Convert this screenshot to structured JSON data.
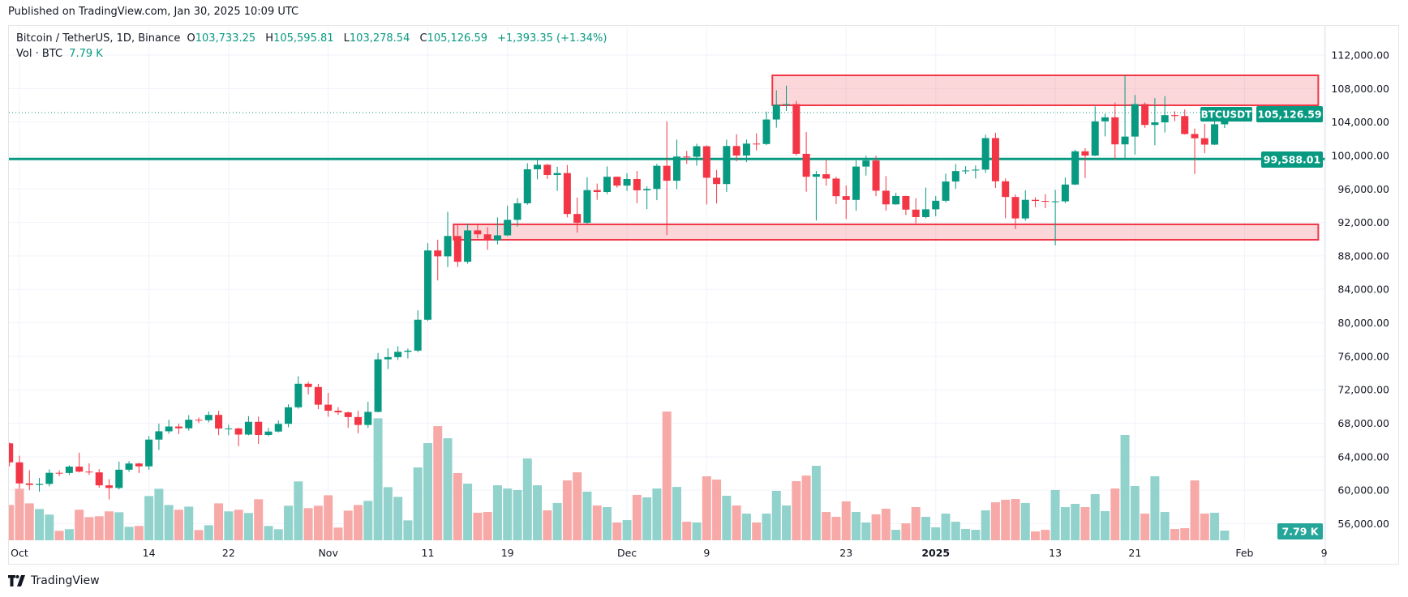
{
  "header": {
    "published": "Published on TradingView.com, Jan 30, 2025 10:09 UTC"
  },
  "legend": {
    "symbol": "Bitcoin / TetherUS, 1D, Binance",
    "o_label": "O",
    "o": "103,733.25",
    "h_label": "H",
    "h": "105,595.81",
    "l_label": "L",
    "l": "103,278.54",
    "c_label": "C",
    "c": "105,126.59",
    "change": "+1,393.35 (+1.34%)",
    "vol_label": "Vol · BTC",
    "vol": "7.79 K"
  },
  "price_tags": {
    "symbol_tag": "BTCUSDT",
    "last_price": "105,126.59",
    "hline_price": "99,588.01",
    "volume_tag": "7.79 K"
  },
  "footer": {
    "brand": "TradingView"
  },
  "colors": {
    "up": "#089981",
    "down": "#f23645",
    "up_vol": "#92d2cc",
    "down_vol": "#f7a9a7",
    "zone": "#f23645"
  },
  "chart_data": {
    "type": "candlestick",
    "title": "Bitcoin / TetherUS, 1D, Binance",
    "first_date": "2024-09-30",
    "interval": "1D",
    "ylim": [
      54000,
      114000
    ],
    "y_ticks": [
      "112,000.00",
      "108,000.00",
      "104,000.00",
      "100,000.00",
      "96,000.00",
      "92,000.00",
      "88,000.00",
      "84,000.00",
      "80,000.00",
      "76,000.00",
      "72,000.00",
      "68,000.00",
      "64,000.00",
      "60,000.00",
      "56,000.00"
    ],
    "y_tick_values": [
      112000,
      108000,
      104000,
      100000,
      96000,
      92000,
      88000,
      84000,
      80000,
      76000,
      72000,
      68000,
      64000,
      60000,
      56000
    ],
    "x_ticks": [
      {
        "label": "Oct",
        "day": 1,
        "bold": false
      },
      {
        "label": "14",
        "day": 14,
        "bold": false
      },
      {
        "label": "22",
        "day": 22,
        "bold": false
      },
      {
        "label": "Nov",
        "day": 32,
        "bold": false
      },
      {
        "label": "11",
        "day": 42,
        "bold": false
      },
      {
        "label": "19",
        "day": 50,
        "bold": false
      },
      {
        "label": "Dec",
        "day": 62,
        "bold": false
      },
      {
        "label": "9",
        "day": 70,
        "bold": false
      },
      {
        "label": "23",
        "day": 84,
        "bold": false
      },
      {
        "label": "2025",
        "day": 93,
        "bold": true
      },
      {
        "label": "13",
        "day": 105,
        "bold": false
      },
      {
        "label": "21",
        "day": 113,
        "bold": false
      },
      {
        "label": "Feb",
        "day": 124,
        "bold": false
      },
      {
        "label": "9",
        "day": 132,
        "bold": false
      }
    ],
    "ohlcv_columns": [
      "open",
      "high",
      "low",
      "close",
      "volume_k"
    ],
    "ohlcv": [
      [
        65600,
        65700,
        62850,
        63330,
        28.3
      ],
      [
        63330,
        64130,
        60160,
        60810,
        41.3
      ],
      [
        60810,
        62400,
        60000,
        60630,
        29.6
      ],
      [
        60630,
        61470,
        59830,
        60750,
        25.1
      ],
      [
        60750,
        62480,
        60460,
        62080,
        20.6
      ],
      [
        62080,
        62370,
        61680,
        62060,
        7.6
      ],
      [
        62060,
        62970,
        61820,
        62820,
        8.9
      ],
      [
        62820,
        64480,
        62130,
        62220,
        24.5
      ],
      [
        62220,
        63200,
        61830,
        62130,
        18.6
      ],
      [
        62130,
        62520,
        60300,
        60580,
        19.3
      ],
      [
        60580,
        61320,
        58900,
        60270,
        23.2
      ],
      [
        60270,
        63420,
        60090,
        62450,
        22.5
      ],
      [
        62450,
        63480,
        62190,
        63190,
        10.8
      ],
      [
        63190,
        63280,
        62050,
        62850,
        11.5
      ],
      [
        62850,
        66500,
        62440,
        66050,
        35.5
      ],
      [
        66050,
        67950,
        64800,
        67040,
        41.3
      ],
      [
        67040,
        68420,
        66750,
        67610,
        28.3
      ],
      [
        67610,
        67940,
        66700,
        67400,
        24.5
      ],
      [
        67400,
        68970,
        67130,
        68420,
        27.0
      ],
      [
        68420,
        68690,
        68020,
        68360,
        8.2
      ],
      [
        68360,
        69400,
        68100,
        69000,
        12.1
      ],
      [
        69000,
        69500,
        66570,
        67370,
        29.6
      ],
      [
        67370,
        67830,
        66570,
        67380,
        23.2
      ],
      [
        67380,
        67470,
        65260,
        66650,
        24.5
      ],
      [
        66650,
        68850,
        66550,
        68170,
        21.9
      ],
      [
        68170,
        68800,
        65520,
        66600,
        32.9
      ],
      [
        66600,
        67450,
        66460,
        67010,
        11.5
      ],
      [
        67010,
        68330,
        66910,
        67930,
        8.9
      ],
      [
        67930,
        70270,
        67520,
        69910,
        27.7
      ],
      [
        69910,
        73620,
        69730,
        72720,
        47.2
      ],
      [
        72720,
        72960,
        71440,
        72330,
        25.8
      ],
      [
        72330,
        72700,
        69680,
        70220,
        27.7
      ],
      [
        70220,
        71630,
        68780,
        69500,
        36.1
      ],
      [
        69500,
        69920,
        69000,
        69300,
        10.2
      ],
      [
        69300,
        69400,
        67460,
        68740,
        23.8
      ],
      [
        68740,
        69490,
        66800,
        67800,
        28.3
      ],
      [
        67800,
        70580,
        67450,
        69360,
        31.6
      ],
      [
        69360,
        76400,
        69300,
        75640,
        97.8
      ],
      [
        75640,
        76950,
        74460,
        75900,
        42.6
      ],
      [
        75900,
        77200,
        75560,
        76540,
        34.8
      ],
      [
        76540,
        76930,
        75740,
        76680,
        16.0
      ],
      [
        76680,
        81500,
        76490,
        80370,
        58.4
      ],
      [
        80370,
        89530,
        80220,
        88650,
        77.9
      ],
      [
        88650,
        89940,
        85070,
        87950,
        91.5
      ],
      [
        87950,
        93270,
        86660,
        90380,
        81.8
      ],
      [
        90380,
        91760,
        86670,
        87300,
        53.9
      ],
      [
        87300,
        91850,
        87070,
        91050,
        45.4
      ],
      [
        91050,
        91800,
        90090,
        90580,
        22.1
      ],
      [
        90580,
        91440,
        88720,
        89850,
        22.7
      ],
      [
        89850,
        92600,
        89380,
        90460,
        44.1
      ],
      [
        90460,
        94000,
        90370,
        92310,
        41.5
      ],
      [
        92310,
        94900,
        91500,
        94290,
        40.3
      ],
      [
        94290,
        99070,
        94120,
        98350,
        65.6
      ],
      [
        98350,
        99590,
        97150,
        98890,
        44.1
      ],
      [
        98890,
        99000,
        97200,
        97670,
        24.0
      ],
      [
        97670,
        98650,
        95770,
        97900,
        29.9
      ],
      [
        97900,
        98870,
        92600,
        93010,
        48.0
      ],
      [
        93010,
        94970,
        90790,
        91960,
        54.5
      ],
      [
        91960,
        97400,
        91820,
        95860,
        39.0
      ],
      [
        95860,
        96650,
        94700,
        95640,
        27.9
      ],
      [
        95640,
        98700,
        95380,
        97460,
        26.6
      ],
      [
        97460,
        97470,
        96160,
        96400,
        14.3
      ],
      [
        96400,
        97890,
        95770,
        97190,
        16.2
      ],
      [
        97190,
        98150,
        94300,
        95840,
        36.4
      ],
      [
        95840,
        96300,
        93580,
        96000,
        34.4
      ],
      [
        96000,
        99000,
        94660,
        98770,
        41.5
      ],
      [
        98770,
        104090,
        90500,
        96980,
        103.2
      ],
      [
        96980,
        101900,
        95980,
        99870,
        42.8
      ],
      [
        99870,
        100550,
        99000,
        99850,
        14.9
      ],
      [
        99850,
        101400,
        98780,
        101110,
        14.3
      ],
      [
        101110,
        101210,
        94150,
        97340,
        51.3
      ],
      [
        97340,
        98270,
        94260,
        96590,
        48.7
      ],
      [
        96590,
        101890,
        95640,
        101130,
        35.7
      ],
      [
        101130,
        102540,
        99310,
        100000,
        27.9
      ],
      [
        100000,
        101900,
        99210,
        101420,
        21.4
      ],
      [
        101420,
        102650,
        100610,
        101370,
        14.3
      ],
      [
        101370,
        105250,
        101230,
        104300,
        21.4
      ],
      [
        104300,
        107790,
        103330,
        106060,
        39.6
      ],
      [
        106060,
        108350,
        105320,
        106140,
        27.9
      ],
      [
        106140,
        106520,
        100000,
        100200,
        47.4
      ],
      [
        100200,
        102800,
        95670,
        97460,
        51.9
      ],
      [
        97460,
        98160,
        92230,
        97760,
        59.7
      ],
      [
        97760,
        99540,
        96400,
        97240,
        22.7
      ],
      [
        97240,
        97450,
        94200,
        95140,
        18.8
      ],
      [
        95140,
        96420,
        92400,
        94690,
        31.2
      ],
      [
        94690,
        99400,
        93400,
        98680,
        22.7
      ],
      [
        98680,
        99960,
        97600,
        99400,
        14.3
      ],
      [
        99400,
        99960,
        95140,
        95790,
        20.8
      ],
      [
        95790,
        97540,
        93400,
        94160,
        25.3
      ],
      [
        94160,
        95530,
        94120,
        95160,
        8.4
      ],
      [
        95160,
        95200,
        92880,
        93530,
        13.6
      ],
      [
        93530,
        94900,
        91900,
        92640,
        26.6
      ],
      [
        92640,
        96160,
        92500,
        93570,
        18.8
      ],
      [
        93570,
        95150,
        92740,
        94590,
        10.4
      ],
      [
        94590,
        97840,
        94400,
        96890,
        21.4
      ],
      [
        96890,
        98980,
        96040,
        98140,
        14.9
      ],
      [
        98140,
        98730,
        97780,
        98210,
        9.1
      ],
      [
        98210,
        98810,
        97250,
        98310,
        8.4
      ],
      [
        98310,
        102480,
        97920,
        102080,
        24.0
      ],
      [
        102080,
        102720,
        96130,
        96920,
        30.5
      ],
      [
        96920,
        97260,
        92500,
        95040,
        32.5
      ],
      [
        95040,
        95350,
        91200,
        92480,
        33.1
      ],
      [
        92480,
        95840,
        92200,
        94700,
        29.9
      ],
      [
        94700,
        95000,
        93830,
        94570,
        7.1
      ],
      [
        94570,
        95380,
        93700,
        94490,
        8.4
      ],
      [
        94490,
        95890,
        89260,
        94520,
        40.3
      ],
      [
        94520,
        97370,
        94300,
        96530,
        26.6
      ],
      [
        96530,
        100680,
        96450,
        100500,
        29.2
      ],
      [
        100500,
        100870,
        97300,
        99990,
        26.6
      ],
      [
        99990,
        105870,
        99940,
        104080,
        37.0
      ],
      [
        104080,
        104990,
        102280,
        104560,
        23.4
      ],
      [
        104560,
        106320,
        99520,
        101330,
        41.5
      ],
      [
        101330,
        109590,
        99550,
        102260,
        84.4
      ],
      [
        102260,
        107240,
        100120,
        106140,
        43.5
      ],
      [
        106140,
        106330,
        103300,
        103650,
        21.4
      ],
      [
        103650,
        106850,
        101230,
        103960,
        51.3
      ],
      [
        103960,
        107100,
        102750,
        104820,
        22.7
      ],
      [
        104820,
        105290,
        104110,
        104710,
        9.1
      ],
      [
        104710,
        105500,
        102500,
        102570,
        9.7
      ],
      [
        102570,
        103220,
        97780,
        102060,
        48.0
      ],
      [
        102060,
        103780,
        100270,
        101300,
        21.4
      ],
      [
        101300,
        104800,
        101260,
        103730,
        22.1
      ],
      [
        103730,
        105595.81,
        103278.54,
        105126.59,
        7.79
      ]
    ],
    "horizontal_lines": [
      {
        "price": 99588.01,
        "label": "99,588.01"
      }
    ],
    "last_price_line": 105126.59,
    "zones": [
      {
        "name": "resistance-zone",
        "from_day": 77,
        "to_day": 131,
        "price_top": 109580,
        "price_bottom": 106000
      },
      {
        "name": "support-zone",
        "from_day": 45,
        "to_day": 131,
        "price_top": 91770,
        "price_bottom": 89930
      }
    ]
  }
}
